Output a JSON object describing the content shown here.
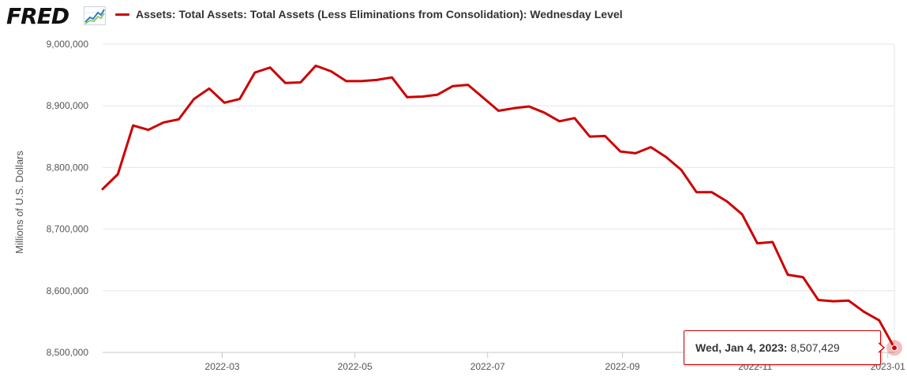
{
  "header": {
    "logo_text": "FRED",
    "logo_icon": "line-graph-icon",
    "legend_label": "Assets: Total Assets: Total Assets (Less Eliminations from Consolidation): Wednesday Level",
    "series_color": "#cc0000"
  },
  "tooltip": {
    "date": "Wed, Jan 4, 2023:",
    "value": "8,507,429"
  },
  "chart_data": {
    "type": "line",
    "title": "Assets: Total Assets: Total Assets (Less Eliminations from Consolidation): Wednesday Level",
    "xlabel": "",
    "ylabel": "Millions of U.S. Dollars",
    "ylim": [
      8500000,
      9000000
    ],
    "yticks": [
      8500000,
      8600000,
      8700000,
      8800000,
      8900000,
      9000000
    ],
    "ytick_labels": [
      "8,500,000",
      "8,600,000",
      "8,700,000",
      "8,800,000",
      "8,900,000",
      "9,000,000"
    ],
    "xlim": [
      "2022-01-05",
      "2023-01-04"
    ],
    "xticks": [
      "2022-03-01",
      "2022-05-01",
      "2022-07-01",
      "2022-09-01",
      "2022-11-01",
      "2023-01-01"
    ],
    "xtick_labels": [
      "2022-03",
      "2022-05",
      "2022-07",
      "2022-09",
      "2022-11",
      "2023-01"
    ],
    "grid": true,
    "series": [
      {
        "name": "Assets: Total Assets: Total Assets (Less Eliminations from Consolidation): Wednesday Level",
        "color": "#cc0000",
        "x": [
          "2022-01-05",
          "2022-01-12",
          "2022-01-19",
          "2022-01-26",
          "2022-02-02",
          "2022-02-09",
          "2022-02-16",
          "2022-02-23",
          "2022-03-02",
          "2022-03-09",
          "2022-03-16",
          "2022-03-23",
          "2022-03-30",
          "2022-04-06",
          "2022-04-13",
          "2022-04-20",
          "2022-04-27",
          "2022-05-04",
          "2022-05-11",
          "2022-05-18",
          "2022-05-25",
          "2022-06-01",
          "2022-06-08",
          "2022-06-15",
          "2022-06-22",
          "2022-06-29",
          "2022-07-06",
          "2022-07-13",
          "2022-07-20",
          "2022-07-27",
          "2022-08-03",
          "2022-08-10",
          "2022-08-17",
          "2022-08-24",
          "2022-08-31",
          "2022-09-07",
          "2022-09-14",
          "2022-09-21",
          "2022-09-28",
          "2022-10-05",
          "2022-10-12",
          "2022-10-19",
          "2022-10-26",
          "2022-11-02",
          "2022-11-09",
          "2022-11-16",
          "2022-11-23",
          "2022-11-30",
          "2022-12-07",
          "2022-12-14",
          "2022-12-21",
          "2022-12-28",
          "2023-01-04"
        ],
        "y": [
          8765000,
          8789000,
          8868000,
          8861000,
          8873000,
          8878000,
          8911000,
          8928000,
          8905000,
          8911000,
          8954000,
          8962000,
          8937000,
          8938000,
          8965000,
          8956000,
          8940000,
          8940000,
          8942000,
          8946000,
          8914000,
          8915000,
          8918000,
          8932000,
          8934000,
          8913000,
          8892000,
          8896000,
          8899000,
          8889000,
          8875000,
          8880000,
          8850000,
          8851000,
          8826000,
          8823000,
          8833000,
          8817000,
          8796000,
          8760000,
          8760000,
          8745000,
          8724000,
          8677000,
          8679000,
          8626000,
          8622000,
          8585000,
          8583000,
          8584000,
          8566000,
          8552000,
          8507429
        ]
      }
    ]
  }
}
